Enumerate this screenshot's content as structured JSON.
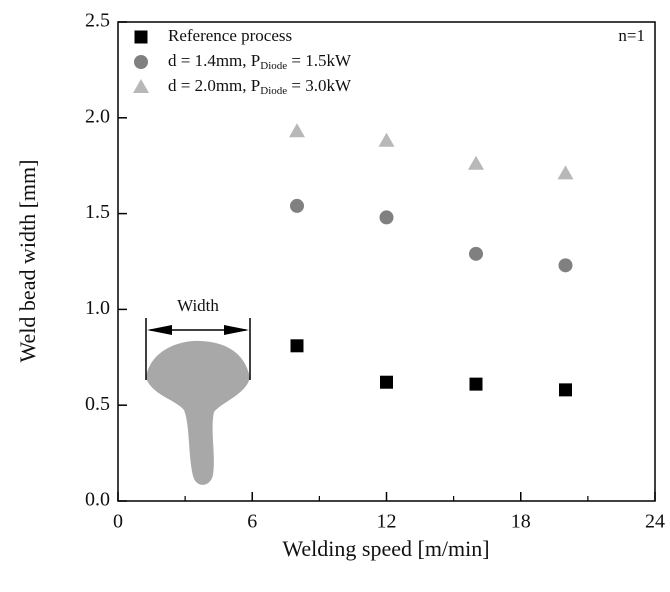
{
  "chart_data": {
    "type": "scatter",
    "xlabel": "Welding speed [m/min]",
    "ylabel": "Weld bead width [mm]",
    "annotation": "n=1",
    "inset_label": "Width",
    "xlim": [
      0,
      24
    ],
    "xticks": [
      0,
      6,
      12,
      18,
      24
    ],
    "xminor_ticks": [
      3,
      9,
      15,
      21
    ],
    "ylim": [
      0,
      2.5
    ],
    "yticks": [
      {
        "value": 0,
        "label": "0.0"
      },
      0.5,
      {
        "value": 1,
        "label": "1.0"
      },
      1.5,
      {
        "value": 2,
        "label": "2.0"
      },
      2.5
    ],
    "legend": "upper left",
    "series": [
      {
        "name": [
          "Reference process"
        ],
        "marker": "square",
        "color": "#000000",
        "x": [
          8,
          12,
          16,
          20
        ],
        "values": [
          0.81,
          0.62,
          0.61,
          0.58
        ]
      },
      {
        "name": [
          "d = 1.4mm, P",
          "Diode",
          " = 1.5kW"
        ],
        "marker": "circle",
        "color": "#808080",
        "x": [
          8,
          12,
          16,
          20
        ],
        "values": [
          1.54,
          1.48,
          1.29,
          1.23
        ]
      },
      {
        "name": [
          "d = 2.0mm, P",
          "Diode",
          " = 3.0kW"
        ],
        "marker": "triangle",
        "color": "#b8b8b8",
        "x": [
          8,
          12,
          16,
          20
        ],
        "values": [
          1.93,
          1.88,
          1.76,
          1.71
        ]
      }
    ]
  }
}
